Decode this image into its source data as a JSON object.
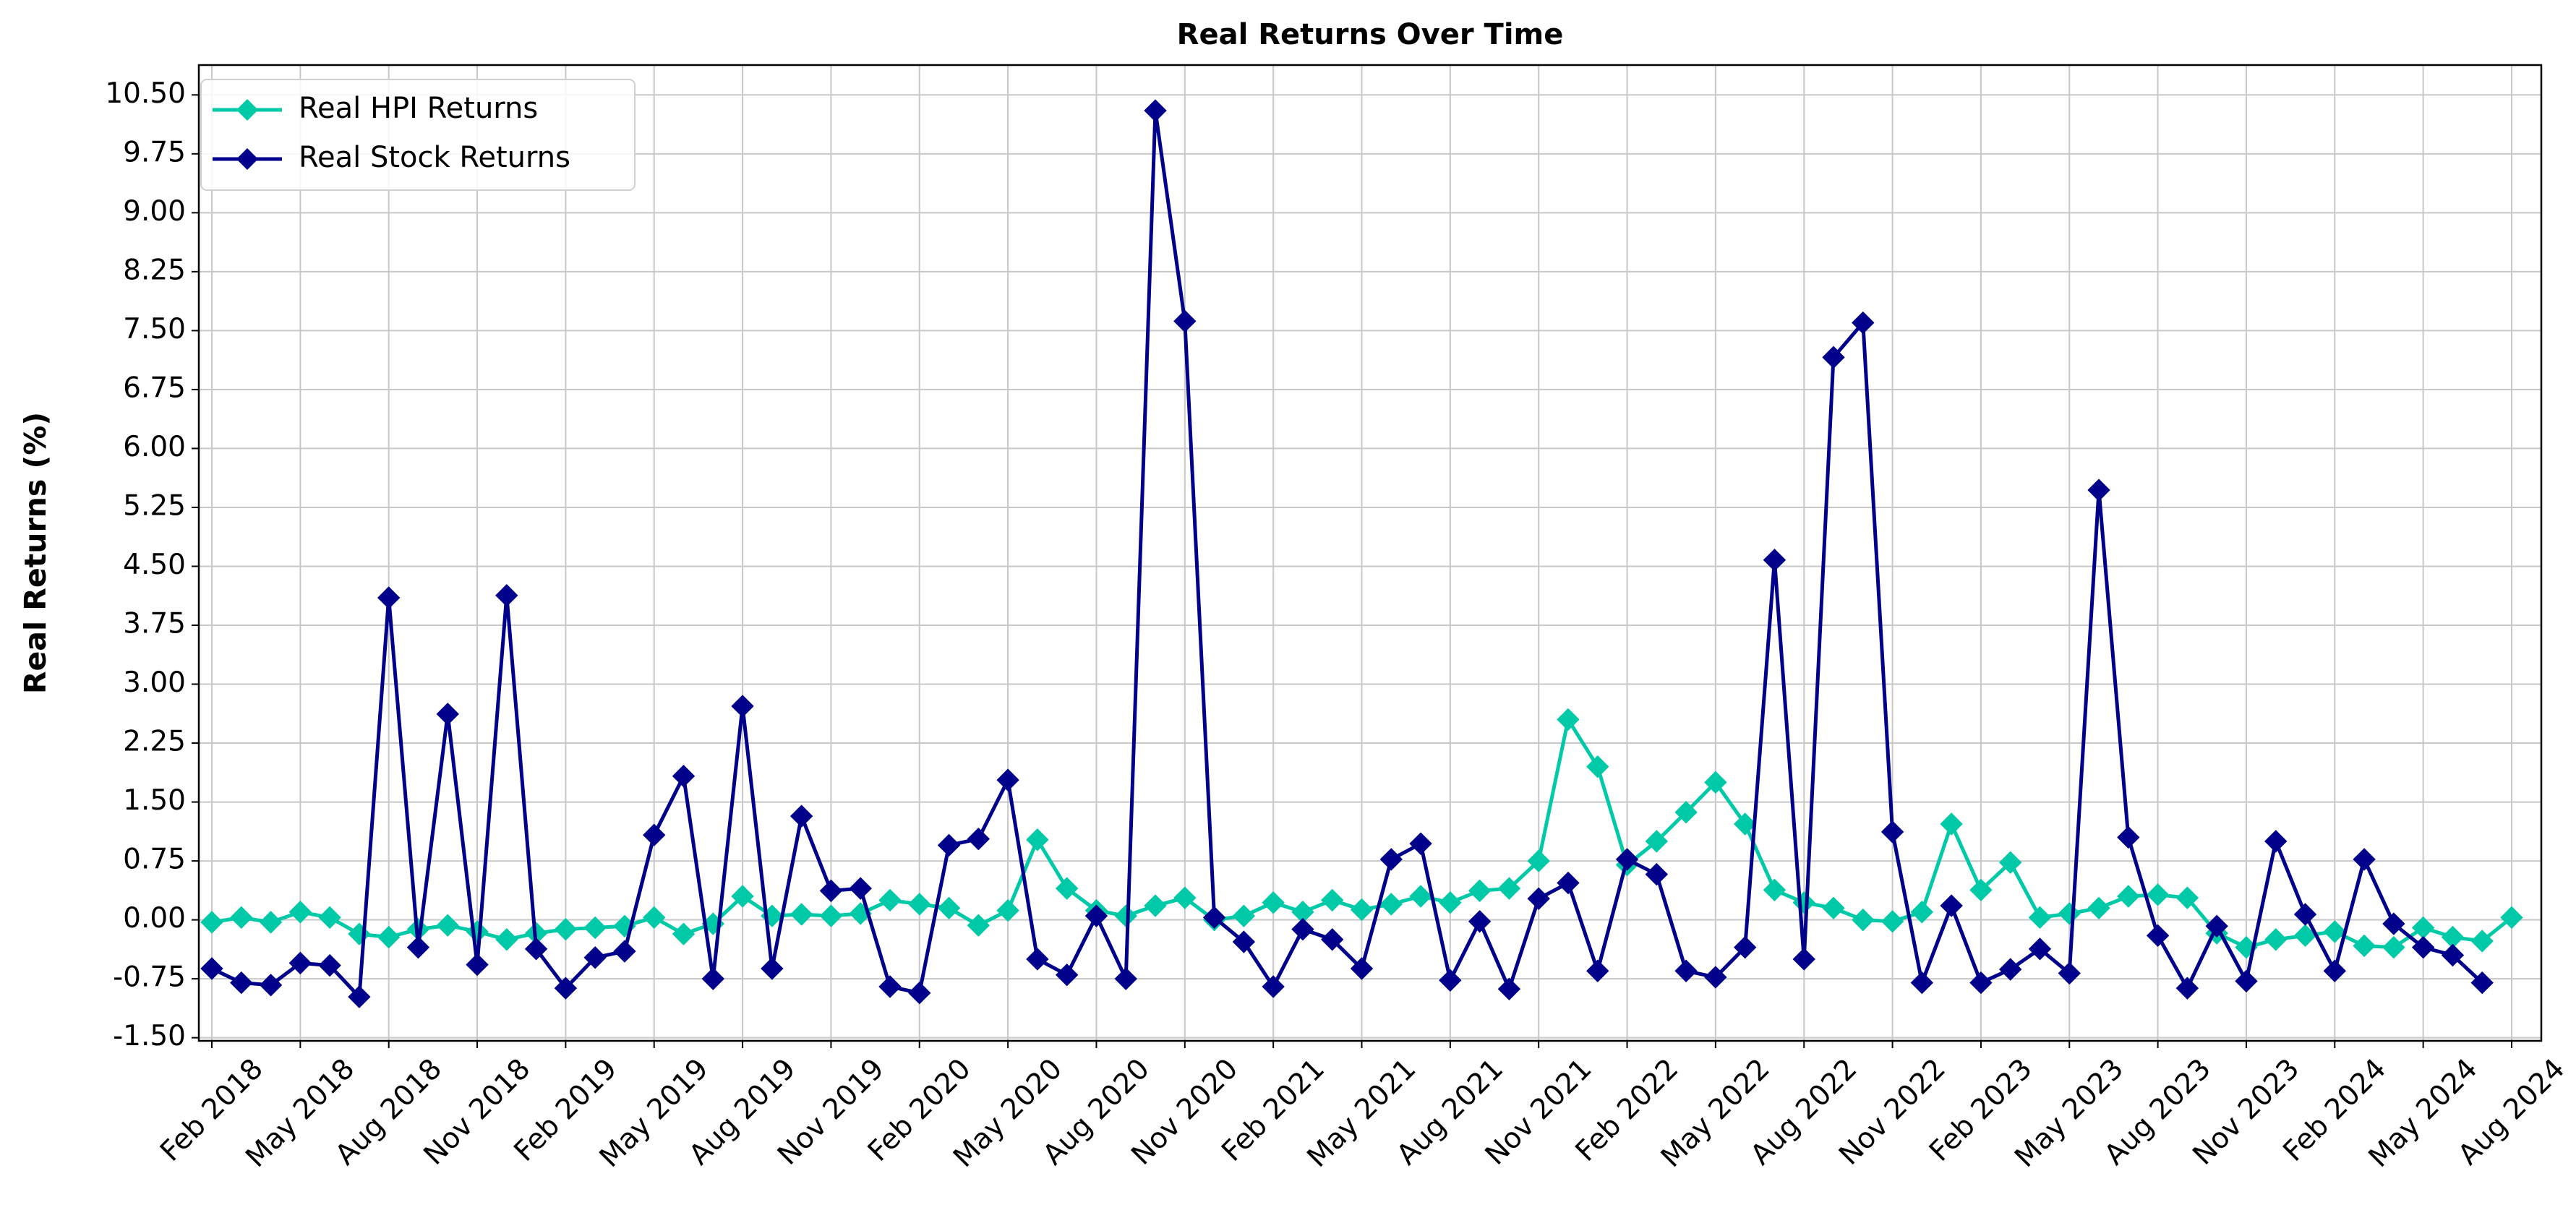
{
  "chart_data": {
    "type": "line",
    "title": "Real Returns Over Time",
    "ylabel": "Real Returns (%)",
    "x": [
      "2018-02",
      "2018-03",
      "2018-04",
      "2018-05",
      "2018-06",
      "2018-07",
      "2018-08",
      "2018-09",
      "2018-10",
      "2018-11",
      "2018-12",
      "2019-01",
      "2019-02",
      "2019-03",
      "2019-04",
      "2019-05",
      "2019-06",
      "2019-07",
      "2019-08",
      "2019-09",
      "2019-10",
      "2019-11",
      "2019-12",
      "2020-01",
      "2020-02",
      "2020-03",
      "2020-04",
      "2020-05",
      "2020-06",
      "2020-07",
      "2020-08",
      "2020-09",
      "2020-10",
      "2020-11",
      "2020-12",
      "2021-01",
      "2021-02",
      "2021-03",
      "2021-04",
      "2021-05",
      "2021-06",
      "2021-07",
      "2021-08",
      "2021-09",
      "2021-10",
      "2021-11",
      "2021-12",
      "2022-01",
      "2022-02",
      "2022-03",
      "2022-04",
      "2022-05",
      "2022-06",
      "2022-07",
      "2022-08",
      "2022-09",
      "2022-10",
      "2022-11",
      "2022-12",
      "2023-01",
      "2023-02",
      "2023-03",
      "2023-04",
      "2023-05",
      "2023-06",
      "2023-07",
      "2023-08",
      "2023-09",
      "2023-10",
      "2023-11",
      "2023-12",
      "2024-01",
      "2024-02",
      "2024-03",
      "2024-04",
      "2024-05",
      "2024-06",
      "2024-07",
      "2024-08"
    ],
    "series": [
      {
        "name": "Real HPI Returns",
        "color": "#00c9a7",
        "values": [
          -0.03,
          0.03,
          -0.03,
          0.1,
          0.03,
          -0.18,
          -0.22,
          -0.12,
          -0.07,
          -0.15,
          -0.25,
          -0.17,
          -0.12,
          -0.1,
          -0.08,
          0.03,
          -0.18,
          -0.05,
          0.3,
          0.05,
          0.07,
          0.05,
          0.08,
          0.25,
          0.2,
          0.15,
          -0.07,
          0.12,
          1.02,
          0.4,
          0.12,
          0.05,
          0.18,
          0.28,
          0.0,
          0.05,
          0.22,
          0.1,
          0.25,
          0.13,
          0.2,
          0.3,
          0.22,
          0.37,
          0.4,
          0.75,
          2.55,
          1.95,
          0.7,
          1.0,
          1.37,
          1.75,
          1.22,
          0.38,
          0.22,
          0.15,
          0.0,
          -0.02,
          0.1,
          1.22,
          0.38,
          0.73,
          0.03,
          0.08,
          0.15,
          0.3,
          0.32,
          0.28,
          -0.17,
          -0.35,
          -0.25,
          -0.2,
          -0.15,
          -0.33,
          -0.35,
          -0.1,
          -0.22,
          -0.27,
          0.03
        ]
      },
      {
        "name": "Real Stock Returns",
        "color": "#00008b",
        "values": [
          -0.62,
          -0.8,
          -0.83,
          -0.55,
          -0.58,
          -0.98,
          4.1,
          -0.35,
          2.62,
          -0.57,
          4.13,
          -0.37,
          -0.87,
          -0.48,
          -0.4,
          1.08,
          1.83,
          -0.75,
          2.72,
          -0.62,
          1.32,
          0.37,
          0.4,
          -0.85,
          -0.93,
          0.95,
          1.03,
          1.78,
          -0.5,
          -0.7,
          0.05,
          -0.75,
          10.3,
          7.62,
          0.03,
          -0.28,
          -0.85,
          -0.12,
          -0.25,
          -0.62,
          0.77,
          0.97,
          -0.77,
          -0.02,
          -0.88,
          0.27,
          0.47,
          -0.65,
          0.77,
          0.58,
          -0.65,
          -0.73,
          -0.35,
          4.58,
          -0.5,
          7.16,
          7.6,
          1.12,
          -0.8,
          0.18,
          -0.8,
          -0.63,
          -0.37,
          -0.68,
          5.47,
          1.05,
          -0.2,
          -0.87,
          -0.08,
          -0.78,
          1.0,
          0.07,
          -0.65,
          0.77,
          -0.05,
          -0.35,
          -0.45,
          -0.8,
          null
        ]
      }
    ],
    "xlim": [
      "2018-02",
      "2024-08"
    ],
    "xticks": [
      {
        "value": "2018-02",
        "label": "Feb 2018"
      },
      {
        "value": "2018-05",
        "label": "May 2018"
      },
      {
        "value": "2018-08",
        "label": "Aug 2018"
      },
      {
        "value": "2018-11",
        "label": "Nov 2018"
      },
      {
        "value": "2019-02",
        "label": "Feb 2019"
      },
      {
        "value": "2019-05",
        "label": "May 2019"
      },
      {
        "value": "2019-08",
        "label": "Aug 2019"
      },
      {
        "value": "2019-11",
        "label": "Nov 2019"
      },
      {
        "value": "2020-02",
        "label": "Feb 2020"
      },
      {
        "value": "2020-05",
        "label": "May 2020"
      },
      {
        "value": "2020-08",
        "label": "Aug 2020"
      },
      {
        "value": "2020-11",
        "label": "Nov 2020"
      },
      {
        "value": "2021-02",
        "label": "Feb 2021"
      },
      {
        "value": "2021-05",
        "label": "May 2021"
      },
      {
        "value": "2021-08",
        "label": "Aug 2021"
      },
      {
        "value": "2021-11",
        "label": "Nov 2021"
      },
      {
        "value": "2022-02",
        "label": "Feb 2022"
      },
      {
        "value": "2022-05",
        "label": "May 2022"
      },
      {
        "value": "2022-08",
        "label": "Aug 2022"
      },
      {
        "value": "2022-11",
        "label": "Nov 2022"
      },
      {
        "value": "2023-02",
        "label": "Feb 2023"
      },
      {
        "value": "2023-05",
        "label": "May 2023"
      },
      {
        "value": "2023-08",
        "label": "Aug 2023"
      },
      {
        "value": "2023-11",
        "label": "Nov 2023"
      },
      {
        "value": "2024-02",
        "label": "Feb 2024"
      },
      {
        "value": "2024-05",
        "label": "May 2024"
      },
      {
        "value": "2024-08",
        "label": "Aug 2024"
      }
    ],
    "ylim": [
      -1.54,
      10.88
    ],
    "yticks": [
      {
        "value": -1.5,
        "label": "-1.50"
      },
      {
        "value": -0.75,
        "label": "-0.75"
      },
      {
        "value": 0,
        "label": "0.00"
      },
      {
        "value": 0.75,
        "label": "0.75"
      },
      {
        "value": 1.5,
        "label": "1.50"
      },
      {
        "value": 2.25,
        "label": "2.25"
      },
      {
        "value": 3,
        "label": "3.00"
      },
      {
        "value": 3.75,
        "label": "3.75"
      },
      {
        "value": 4.5,
        "label": "4.50"
      },
      {
        "value": 5.25,
        "label": "5.25"
      },
      {
        "value": 6,
        "label": "6.00"
      },
      {
        "value": 6.75,
        "label": "6.75"
      },
      {
        "value": 7.5,
        "label": "7.50"
      },
      {
        "value": 8.25,
        "label": "8.25"
      },
      {
        "value": 9,
        "label": "9.00"
      },
      {
        "value": 9.75,
        "label": "9.75"
      },
      {
        "value": 10.5,
        "label": "10.50"
      }
    ],
    "grid": true,
    "legend": "upper left",
    "marker": "diamond"
  }
}
